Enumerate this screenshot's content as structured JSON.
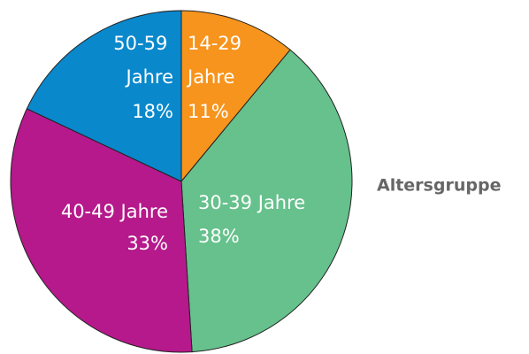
{
  "chart_data": {
    "type": "pie",
    "legend_title": "Altersgruppe",
    "categories": [
      "14-29 Jahre",
      "30-39 Jahre",
      "40-49 Jahre",
      "50-59 Jahre"
    ],
    "values": [
      11,
      38,
      33,
      18
    ],
    "value_labels": [
      "11%",
      "38%",
      "33%",
      "18%"
    ],
    "colors": [
      "#f7941d",
      "#66c18c",
      "#b5198b",
      "#0a88cc"
    ]
  }
}
